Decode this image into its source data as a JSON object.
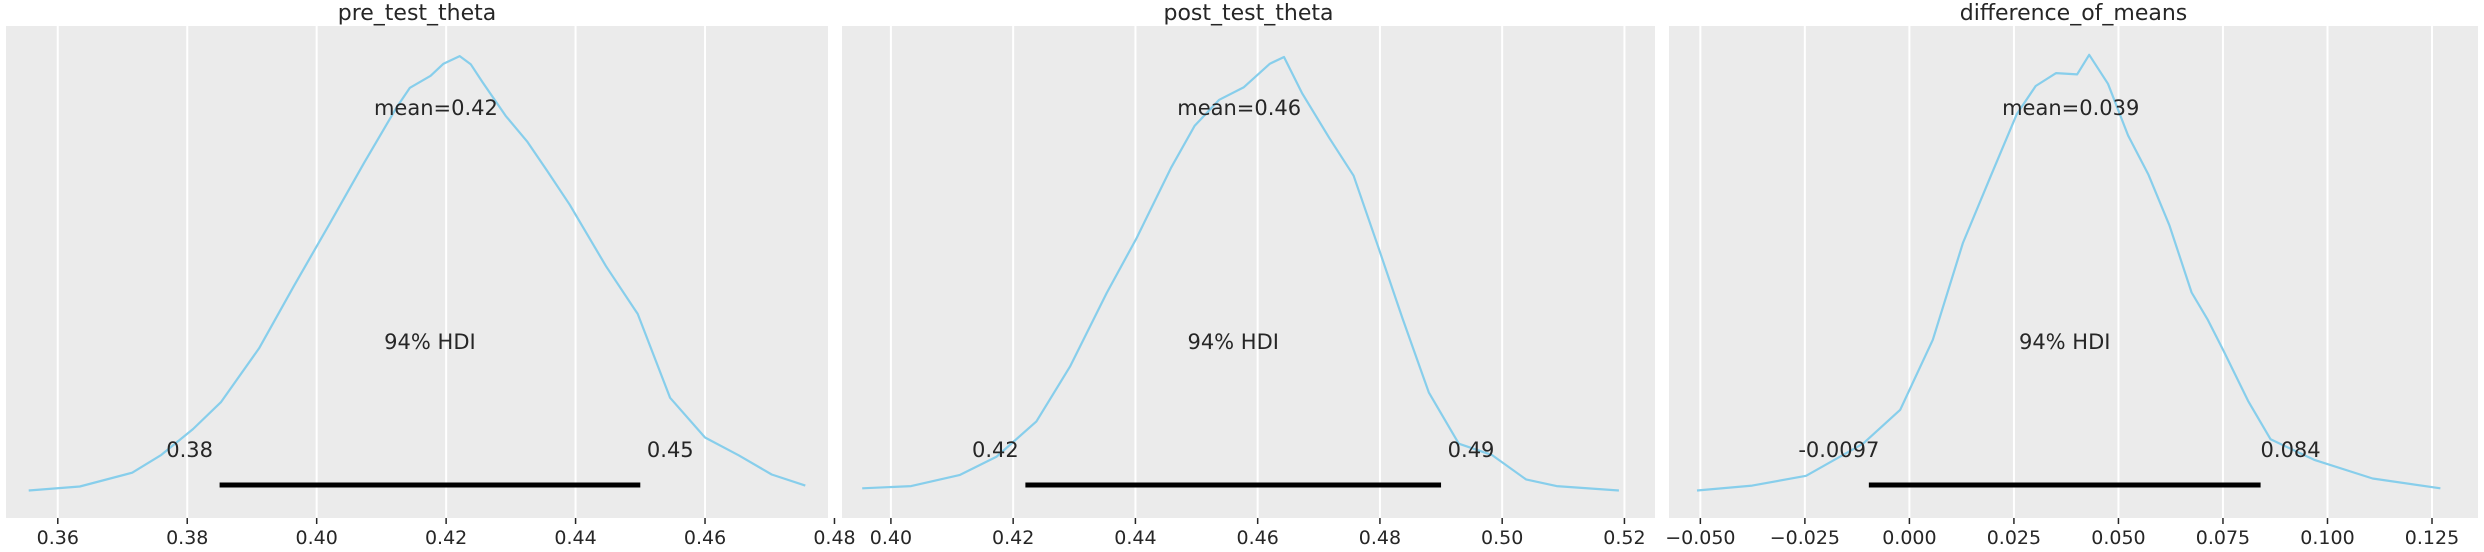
{
  "figure": {
    "background": "#ffffff",
    "panel_background": "#ebebeb",
    "grid_color": "#ffffff",
    "kde_color": "#87ceeb",
    "hdi_color": "#000000",
    "text_color": "#262626"
  },
  "chart_data": [
    {
      "type": "line",
      "title": "pre_test_theta",
      "grid": true,
      "xlim": [
        0.352,
        0.479
      ],
      "xticks": [
        0.36,
        0.38,
        0.4,
        0.42,
        0.44,
        0.46,
        0.48
      ],
      "xtick_labels": [
        "0.36",
        "0.38",
        "0.40",
        "0.42",
        "0.44",
        "0.46",
        "0.48"
      ],
      "mean_label": "mean=0.42",
      "hdi_label": "94% HDI",
      "hdi": [
        0.385,
        0.45
      ],
      "hdi_low_label": "0.38",
      "hdi_high_label": "0.45",
      "x": [
        0.3555,
        0.3634,
        0.3715,
        0.376,
        0.3809,
        0.3852,
        0.3911,
        0.3965,
        0.402,
        0.4073,
        0.4123,
        0.4144,
        0.4176,
        0.4196,
        0.4221,
        0.4238,
        0.4256,
        0.4292,
        0.4325,
        0.4356,
        0.4391,
        0.4447,
        0.4496,
        0.4546,
        0.46,
        0.4652,
        0.4703,
        0.4755
      ],
      "y": [
        0.01,
        0.019,
        0.05,
        0.09,
        0.148,
        0.208,
        0.329,
        0.469,
        0.608,
        0.744,
        0.868,
        0.913,
        0.94,
        0.967,
        0.984,
        0.966,
        0.926,
        0.85,
        0.793,
        0.727,
        0.651,
        0.513,
        0.406,
        0.218,
        0.129,
        0.089,
        0.046,
        0.021
      ]
    },
    {
      "type": "line",
      "title": "post_test_theta",
      "grid": true,
      "xlim": [
        0.392,
        0.525
      ],
      "xticks": [
        0.4,
        0.42,
        0.44,
        0.46,
        0.48,
        0.5,
        0.52
      ],
      "xtick_labels": [
        "0.40",
        "0.42",
        "0.44",
        "0.46",
        "0.48",
        "0.50",
        "0.52"
      ],
      "mean_label": "mean=0.46",
      "hdi_label": "94% HDI",
      "hdi": [
        0.422,
        0.49
      ],
      "hdi_low_label": "0.42",
      "hdi_high_label": "0.49",
      "x": [
        0.3953,
        0.4033,
        0.4113,
        0.4173,
        0.4238,
        0.4293,
        0.4353,
        0.4402,
        0.4458,
        0.4497,
        0.4537,
        0.4577,
        0.462,
        0.4643,
        0.4673,
        0.4717,
        0.4757,
        0.4796,
        0.4837,
        0.488,
        0.4929,
        0.4983,
        0.5039,
        0.5089,
        0.5191
      ],
      "y": [
        0.015,
        0.02,
        0.045,
        0.086,
        0.165,
        0.288,
        0.453,
        0.576,
        0.733,
        0.828,
        0.886,
        0.914,
        0.967,
        0.982,
        0.9,
        0.801,
        0.716,
        0.561,
        0.396,
        0.23,
        0.115,
        0.09,
        0.035,
        0.02,
        0.01
      ]
    },
    {
      "type": "line",
      "title": "difference_of_means",
      "grid": true,
      "xlim": [
        -0.0575,
        0.136
      ],
      "xticks": [
        -0.05,
        -0.025,
        0.0,
        0.025,
        0.05,
        0.075,
        0.1,
        0.125
      ],
      "xtick_labels": [
        "−0.050",
        "−0.025",
        "0.000",
        "0.025",
        "0.050",
        "0.075",
        "0.100",
        "0.125"
      ],
      "mean_label": "mean=0.039",
      "hdi_label": "94% HDI",
      "hdi": [
        -0.0097,
        0.084
      ],
      "hdi_low_label": "-0.0097",
      "hdi_high_label": "0.084",
      "x": [
        -0.0508,
        -0.0376,
        -0.0247,
        -0.0111,
        -0.0022,
        0.0056,
        0.0128,
        0.0195,
        0.0257,
        0.0302,
        0.0351,
        0.0401,
        0.043,
        0.0475,
        0.0523,
        0.0572,
        0.0622,
        0.0675,
        0.0713,
        0.0751,
        0.081,
        0.0864,
        0.0968,
        0.1108,
        0.127
      ],
      "y": [
        0.01,
        0.021,
        0.043,
        0.115,
        0.191,
        0.348,
        0.565,
        0.716,
        0.854,
        0.917,
        0.946,
        0.943,
        0.987,
        0.922,
        0.806,
        0.718,
        0.604,
        0.454,
        0.394,
        0.324,
        0.211,
        0.125,
        0.079,
        0.037,
        0.015
      ]
    }
  ]
}
